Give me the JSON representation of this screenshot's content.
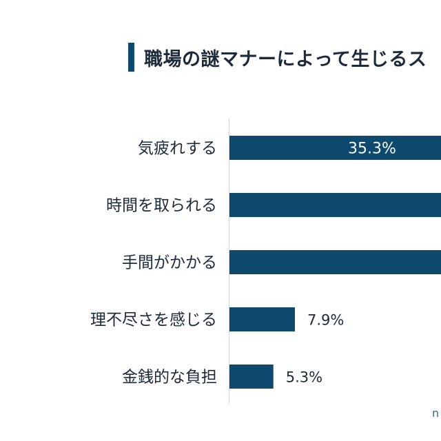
{
  "header": {
    "title": "職場の謎マナーによって生じるス"
  },
  "chart_data": {
    "type": "bar",
    "orientation": "horizontal",
    "title": "職場の謎マナーによって生じるス",
    "categories": [
      "気疲れする",
      "時間を取られる",
      "手間がかかる",
      "理不尽さを感じる",
      "金銭的な負担"
    ],
    "values": [
      35.3,
      null,
      null,
      7.9,
      5.3
    ],
    "value_labels": [
      "35.3%",
      "",
      "",
      "7.9%",
      "5.3%"
    ],
    "bar_color": "#0d4a6e",
    "xlim": [
      0,
      25.5
    ],
    "grid": false,
    "legend": "none"
  },
  "footer": {
    "source_fragment": "n"
  }
}
